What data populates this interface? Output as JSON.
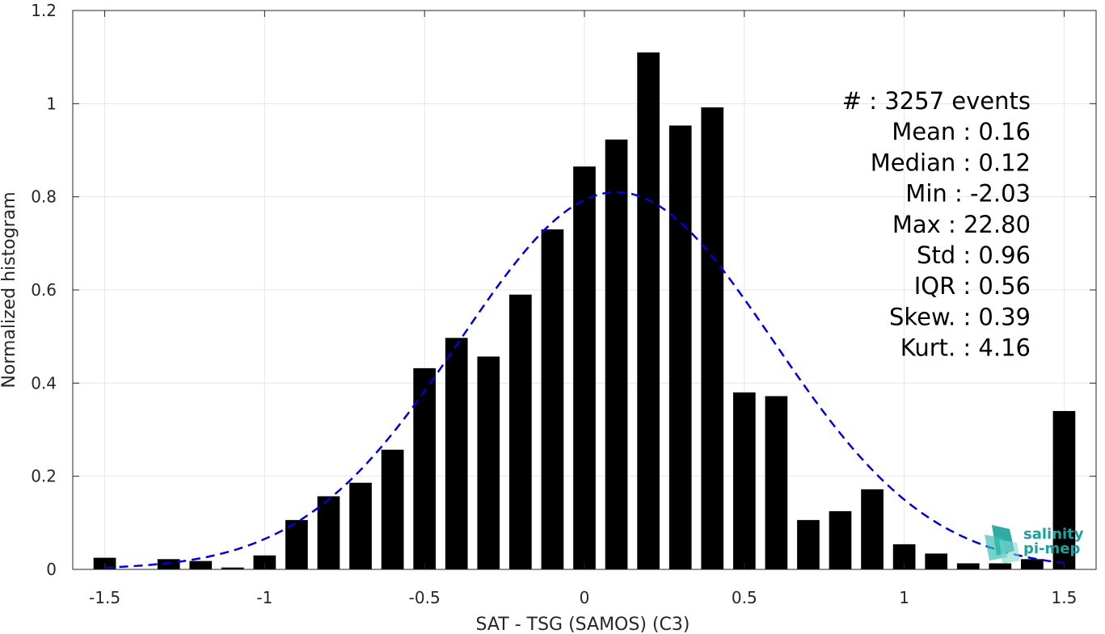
{
  "chart_data": {
    "type": "bar",
    "xlabel": "SAT - TSG (SAMOS) (C3)",
    "ylabel": "Normalized histogram",
    "xlim": [
      -1.6,
      1.6
    ],
    "ylim": [
      0,
      1.2
    ],
    "xticks": [
      -1.5,
      -1,
      -0.5,
      0,
      0.5,
      1,
      1.5
    ],
    "xtick_labels": [
      "-1.5",
      "-1",
      "-0.5",
      "0",
      "0.5",
      "1",
      "1.5"
    ],
    "yticks": [
      0,
      0.2,
      0.4,
      0.6,
      0.8,
      1,
      1.2
    ],
    "ytick_labels": [
      "0",
      "0.2",
      "0.4",
      "0.6",
      "0.8",
      "1",
      "1.2"
    ],
    "grid": true,
    "bar_color": "#000000",
    "x": [
      -1.5,
      -1.4,
      -1.3,
      -1.2,
      -1.1,
      -1.0,
      -0.9,
      -0.8,
      -0.7,
      -0.6,
      -0.5,
      -0.4,
      -0.3,
      -0.2,
      -0.1,
      0.0,
      0.1,
      0.2,
      0.3,
      0.4,
      0.5,
      0.6,
      0.7,
      0.8,
      0.9,
      1.0,
      1.1,
      1.2,
      1.3,
      1.4,
      1.5
    ],
    "values": [
      0.025,
      0,
      0.022,
      0.018,
      0.004,
      0.03,
      0.106,
      0.157,
      0.186,
      0.257,
      0.432,
      0.497,
      0.457,
      0.59,
      0.73,
      0.865,
      0.923,
      1.11,
      0.953,
      0.992,
      0.38,
      0.372,
      0.106,
      0.125,
      0.172,
      0.054,
      0.034,
      0.013,
      0.013,
      0.022,
      0.34
    ],
    "fit_curve": {
      "type": "normal",
      "mean": 0.1,
      "std": 0.49,
      "peak": 0.81,
      "color": "#0000dd",
      "style": "dashed"
    },
    "stats": [
      {
        "label": "#  : 3257 events"
      },
      {
        "label": "Mean : 0.16"
      },
      {
        "label": "Median : 0.12"
      },
      {
        "label": "Min : -2.03"
      },
      {
        "label": "Max : 22.80"
      },
      {
        "label": "Std : 0.96"
      },
      {
        "label": "IQR : 0.56"
      },
      {
        "label": "Skew. : 0.39"
      },
      {
        "label": "Kurt. : 4.16"
      }
    ]
  },
  "logo": {
    "line1": "salinity",
    "line2": "pi-mep",
    "icon": "salinity-pimep-logo-icon",
    "color": "#1aa39a"
  }
}
